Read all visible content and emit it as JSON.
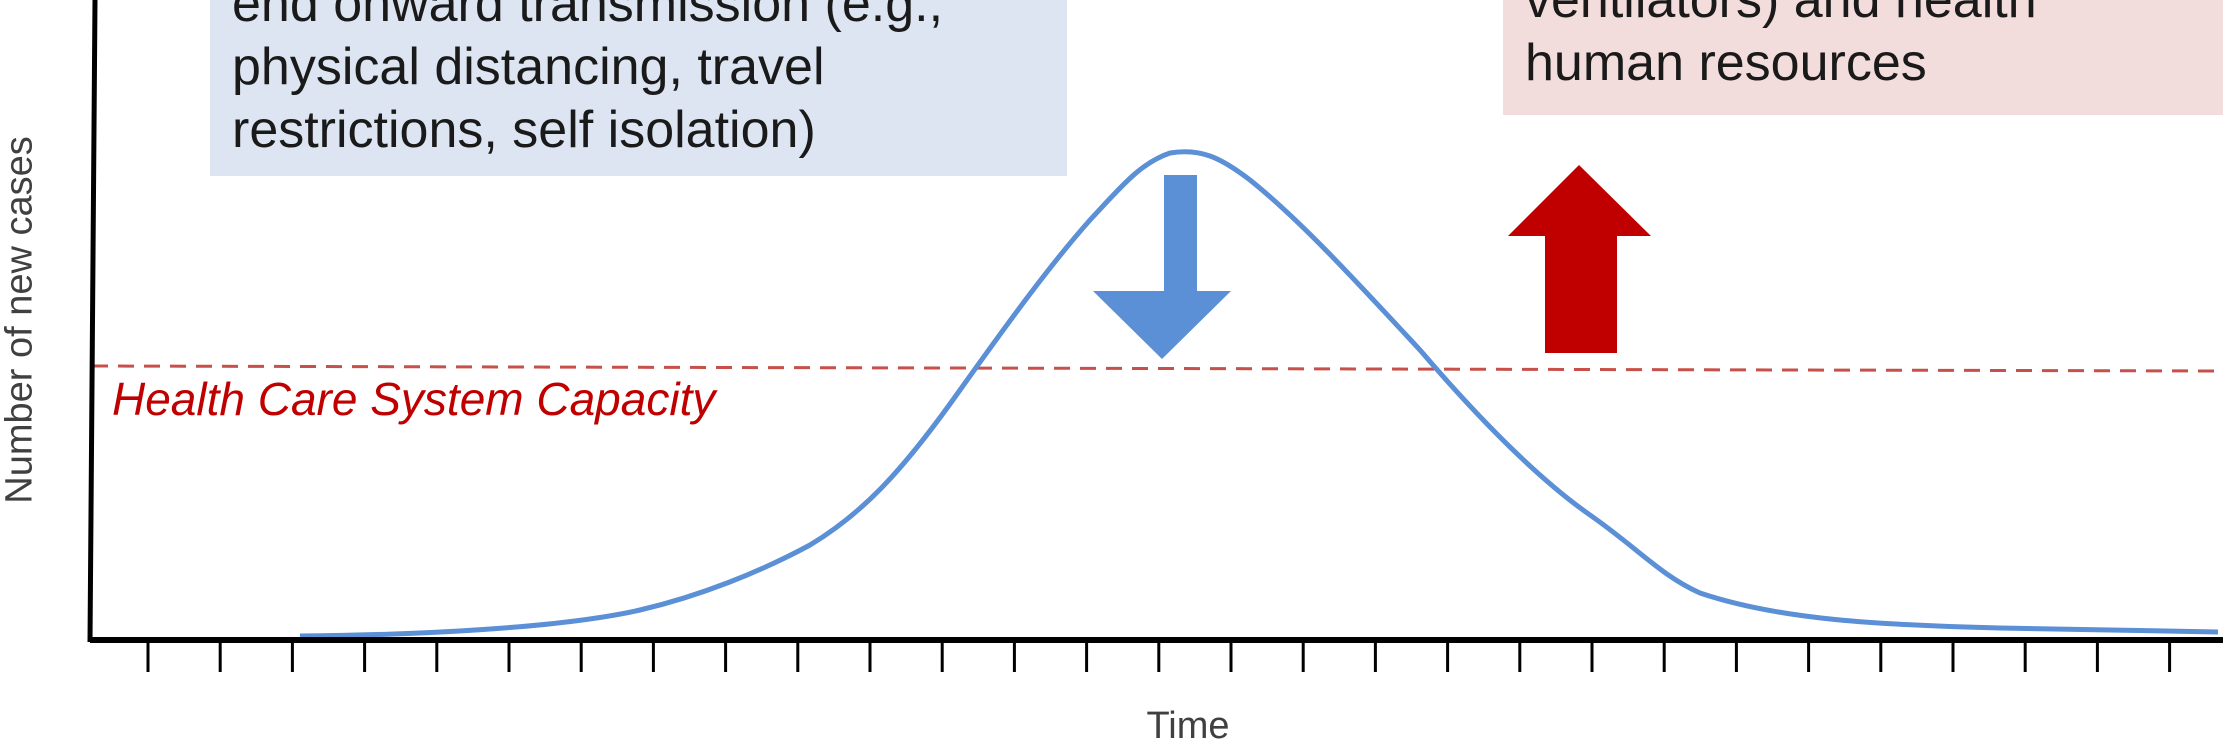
{
  "blue_box": {
    "lines": [
      "end onward transmission (e.g.,",
      "physical distancing, travel",
      "restrictions, self isolation)"
    ]
  },
  "red_box": {
    "lines": [
      "ventilators) and health",
      "human resources"
    ]
  },
  "capacity_label": "Health Care System Capacity",
  "y_axis_label": "Number  of new cases",
  "x_axis_label": "Time",
  "colors": {
    "curve": "#5b8fd6",
    "capacity_line": "#c8504a",
    "capacity_text": "#c00000",
    "down_arrow": "#5b8fd6",
    "up_arrow": "#c00000",
    "axis": "#000000",
    "blue_box_fill": "#dce5f1",
    "red_box_fill": "#f2dcdc"
  }
}
